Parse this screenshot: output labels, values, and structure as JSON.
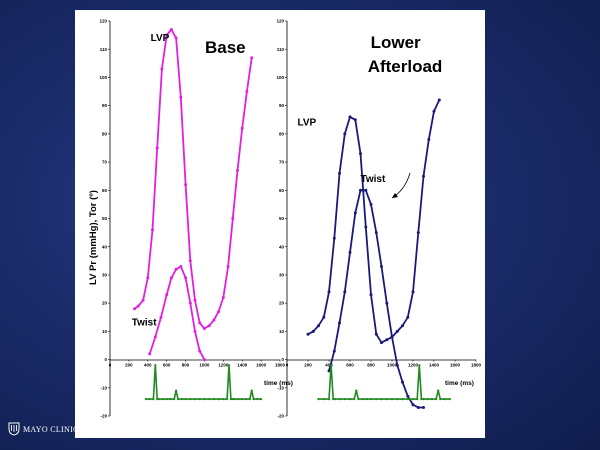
{
  "brand": {
    "name": "MAYO CLINIC"
  },
  "chart_data": [
    {
      "type": "line",
      "title": "Base",
      "ylabel": "LV Pr (mmHg), Tor (º)",
      "xlabel": "time (ms)",
      "xlim": [
        0,
        1800
      ],
      "ylim": [
        -20,
        120
      ],
      "xticks": [
        "0",
        "200",
        "400",
        "600",
        "800",
        "1000",
        "1200",
        "1400",
        "1600",
        "1800"
      ],
      "yticks": [
        "-20",
        "-10",
        "0",
        "10",
        "20",
        "30",
        "40",
        "50",
        "60",
        "70",
        "80",
        "90",
        "100",
        "110",
        "120"
      ],
      "colors": {
        "main": "#e020e0",
        "ecg": "#1f8a1f"
      },
      "series": [
        {
          "name": "LVP",
          "label_pos": [
            430,
            113
          ],
          "x": [
            260,
            300,
            350,
            400,
            450,
            500,
            550,
            600,
            650,
            700,
            750,
            800,
            850,
            900,
            950,
            1000,
            1050,
            1100,
            1150,
            1200,
            1250,
            1300,
            1350,
            1400,
            1450,
            1500
          ],
          "y": [
            18,
            19,
            21,
            29,
            46,
            75,
            103,
            115,
            117,
            114,
            93,
            62,
            35,
            21,
            13,
            11,
            12,
            14,
            17,
            22,
            33,
            50,
            67,
            82,
            95,
            107
          ]
        },
        {
          "name": "Twist",
          "label_pos": [
            230,
            12
          ],
          "x": [
            420,
            480,
            540,
            600,
            650,
            700,
            750,
            800,
            850,
            900,
            950,
            1000
          ],
          "y": [
            2,
            8,
            15,
            23,
            29,
            32,
            33,
            29,
            20,
            10,
            3,
            0
          ]
        },
        {
          "name": "ECG",
          "x": [
            380,
            420,
            460,
            480,
            500,
            520,
            560,
            600,
            640,
            680,
            700,
            720,
            760,
            800,
            850,
            900,
            950,
            1000,
            1050,
            1100,
            1150,
            1200,
            1240,
            1260,
            1280,
            1300,
            1320,
            1360,
            1400,
            1440,
            1480,
            1500,
            1520,
            1560,
            1600
          ],
          "y": [
            -14,
            -14,
            -14,
            -2,
            -14,
            -14,
            -14,
            -14,
            -14,
            -14,
            -11,
            -14,
            -14,
            -14,
            -14,
            -14,
            -14,
            -14,
            -14,
            -14,
            -14,
            -14,
            -14,
            -2,
            -14,
            -14,
            -14,
            -14,
            -14,
            -14,
            -14,
            -11,
            -14,
            -14,
            -14
          ]
        }
      ]
    },
    {
      "type": "line",
      "title": "Lower\nAfterload",
      "xlabel": "time (ms)",
      "xlim": [
        0,
        1800
      ],
      "ylim": [
        -20,
        120
      ],
      "xticks": [
        "0",
        "200",
        "400",
        "600",
        "800",
        "1000",
        "1200",
        "1400",
        "1600",
        "1800"
      ],
      "yticks": [
        "-20",
        "-10",
        "0",
        "10",
        "20",
        "30",
        "40",
        "50",
        "60",
        "70",
        "80",
        "90",
        "100",
        "110",
        "120"
      ],
      "colors": {
        "main": "#1a1a7a",
        "ecg": "#1f8a1f"
      },
      "series": [
        {
          "name": "LVP",
          "label_pos": [
            100,
            83
          ],
          "x": [
            200,
            250,
            300,
            350,
            400,
            450,
            500,
            550,
            600,
            650,
            700,
            750,
            800,
            850,
            900,
            950,
            1000,
            1050,
            1100,
            1150,
            1200,
            1250,
            1300,
            1350,
            1400,
            1450
          ],
          "y": [
            9,
            10,
            12,
            15,
            24,
            43,
            66,
            80,
            86,
            85,
            73,
            47,
            23,
            9,
            6,
            7,
            8,
            10,
            12,
            15,
            24,
            45,
            65,
            78,
            88,
            92
          ]
        },
        {
          "name": "Twist",
          "label_pos": [
            700,
            63
          ],
          "x": [
            400,
            450,
            500,
            550,
            600,
            650,
            700,
            750,
            800,
            850,
            900,
            950,
            1000,
            1050,
            1100,
            1150,
            1200,
            1250,
            1300
          ],
          "y": [
            -4,
            3,
            13,
            24,
            38,
            52,
            60,
            60,
            55,
            45,
            33,
            20,
            8,
            -2,
            -8,
            -13,
            -16,
            -17,
            -17
          ]
        },
        {
          "name": "ECG",
          "x": [
            300,
            350,
            400,
            420,
            440,
            460,
            500,
            550,
            600,
            640,
            660,
            680,
            720,
            760,
            800,
            850,
            900,
            950,
            1000,
            1050,
            1100,
            1150,
            1200,
            1240,
            1260,
            1280,
            1300,
            1340,
            1380,
            1420,
            1440,
            1460,
            1500,
            1550
          ],
          "y": [
            -14,
            -14,
            -14,
            -2,
            -14,
            -14,
            -14,
            -14,
            -14,
            -14,
            -11,
            -14,
            -14,
            -14,
            -14,
            -14,
            -14,
            -14,
            -14,
            -14,
            -14,
            -14,
            -14,
            -14,
            -2,
            -14,
            -14,
            -14,
            -14,
            -14,
            -11,
            -14,
            -14,
            -14
          ]
        }
      ]
    }
  ]
}
